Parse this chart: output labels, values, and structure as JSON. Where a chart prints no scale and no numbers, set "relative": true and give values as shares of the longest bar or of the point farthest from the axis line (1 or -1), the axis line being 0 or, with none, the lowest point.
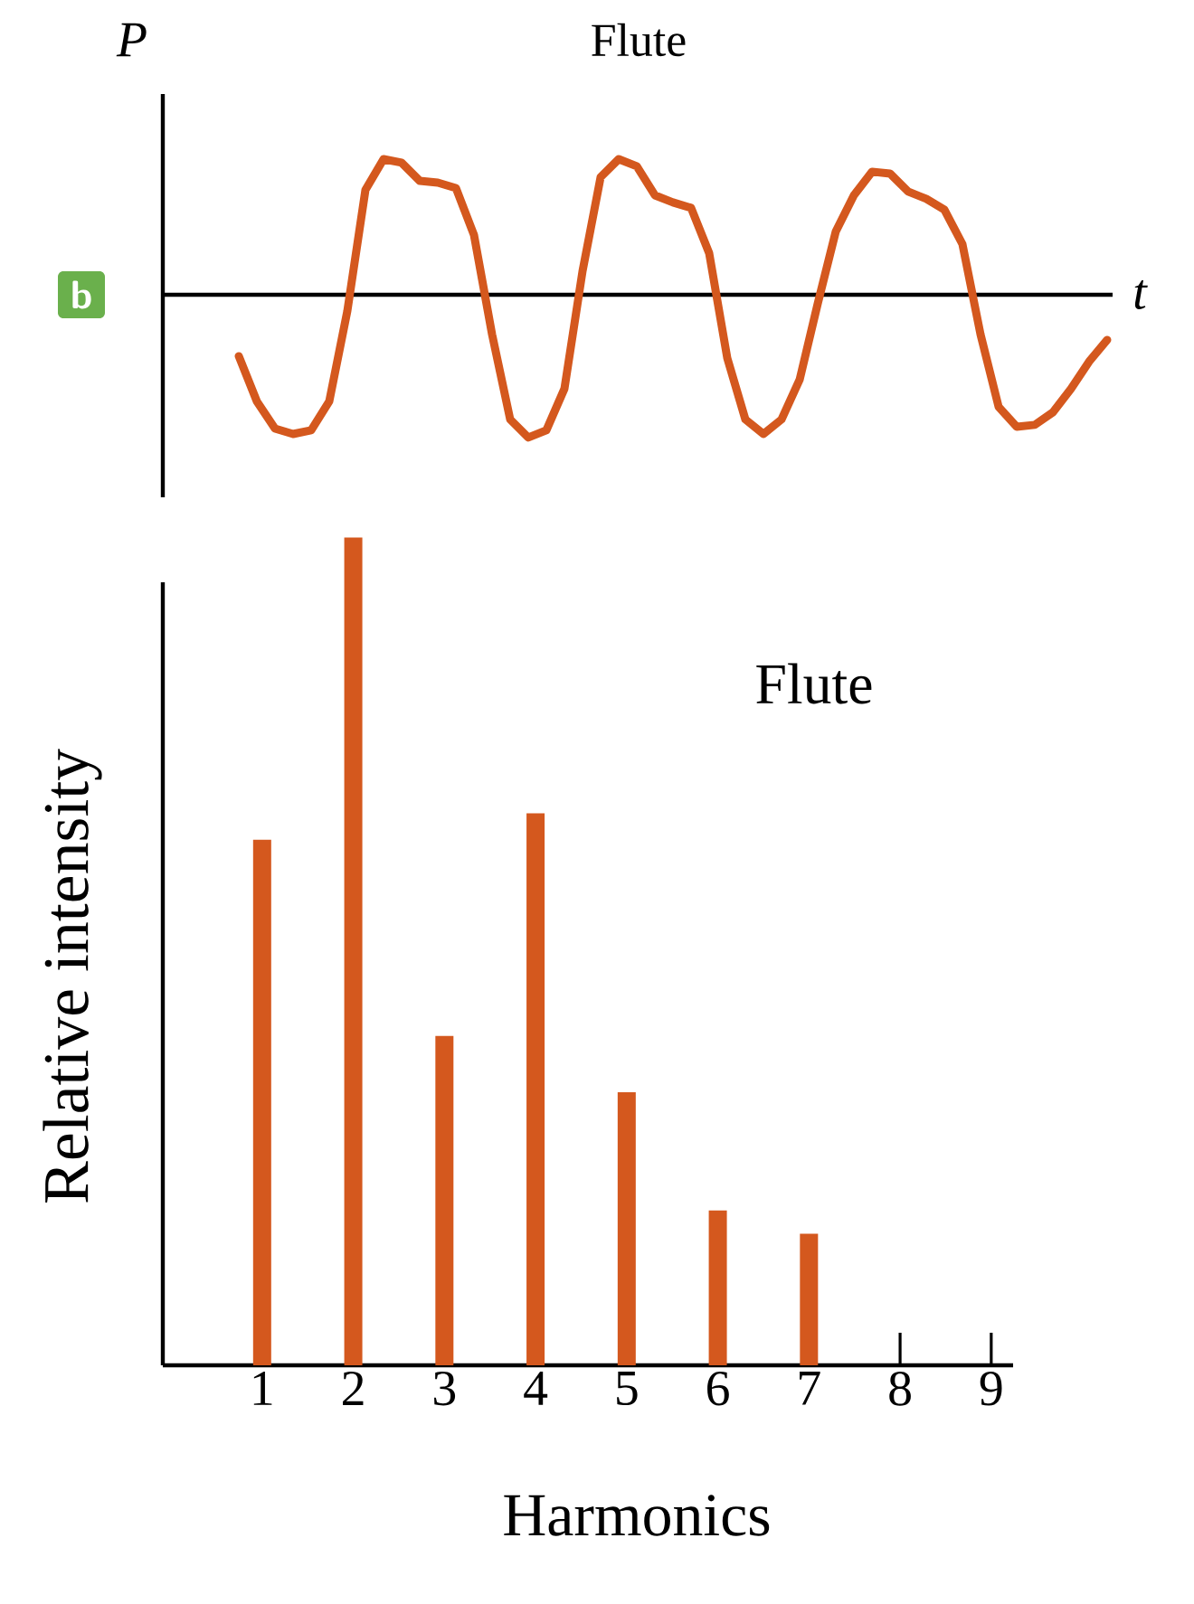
{
  "chart_data": [
    {
      "type": "line",
      "title": "Flute",
      "ylabel": "P",
      "xlabel": "t",
      "annotations": [
        "b"
      ],
      "relative": true,
      "color": "#d4581e",
      "categories": [
        null,
        null,
        null,
        null,
        null,
        null,
        null,
        null,
        null,
        null,
        null,
        null,
        null,
        null,
        null,
        null,
        null,
        null,
        null,
        null,
        null,
        null,
        null,
        null,
        null,
        null,
        null,
        null,
        null,
        null,
        null,
        null,
        null,
        null,
        null,
        null,
        null,
        null,
        null,
        null,
        null,
        null,
        null,
        null,
        null,
        null,
        null,
        null,
        null
      ],
      "values": [
        -0.43,
        -0.747,
        -0.937,
        -0.975,
        -0.949,
        -0.747,
        -0.114,
        0.734,
        0.949,
        0.924,
        0.797,
        0.785,
        0.747,
        0.418,
        -0.278,
        -0.873,
        -1,
        -0.949,
        -0.658,
        0.165,
        0.823,
        0.949,
        0.899,
        0.696,
        0.646,
        0.608,
        0.291,
        -0.443,
        -0.873,
        -0.975,
        -0.873,
        -0.595,
        -0.063,
        0.443,
        0.696,
        0.861,
        0.848,
        0.722,
        0.671,
        0.595,
        0.354,
        -0.278,
        -0.785,
        -0.924,
        -0.911,
        -0.823,
        -0.658,
        -0.468,
        -0.316
      ]
    },
    {
      "type": "bar",
      "xlabel": "Harmonics",
      "ylabel": "Relative intensity",
      "annotations": [
        "Flute"
      ],
      "relative": true,
      "color": "#d4581e",
      "categories": [
        "1",
        "2",
        "3",
        "4",
        "5",
        "6",
        "7",
        "8",
        "9"
      ],
      "values": [
        0.635,
        1,
        0.398,
        0.667,
        0.33,
        0.187,
        0.159,
        0,
        0
      ]
    }
  ]
}
